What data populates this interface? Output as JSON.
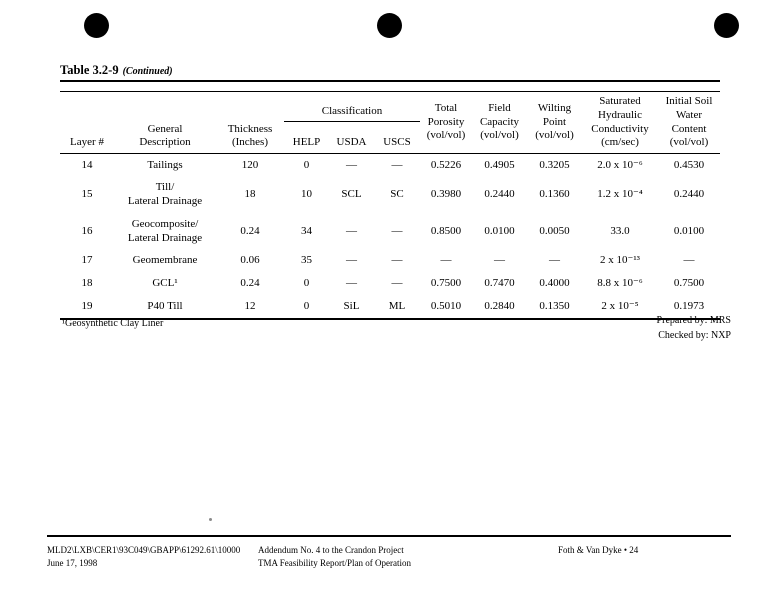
{
  "page": {
    "title_main": "Table 3.2-9",
    "title_suffix": "(Continued)"
  },
  "table": {
    "headers": {
      "layer": "Layer #",
      "description": "General\nDescription",
      "thickness": "Thickness\n(Inches)",
      "classification": "Classification",
      "help": "HELP",
      "usda": "USDA",
      "uscs": "USCS",
      "total_porosity": "Total\nPorosity\n(vol/vol)",
      "field_capacity": "Field\nCapacity\n(vol/vol)",
      "wilting_point": "Wilting\nPoint\n(vol/vol)",
      "saturated_hydraulic_conductivity": "Saturated\nHydraulic\nConductivity\n(cm/sec)",
      "initial_soil_water_content": "Initial Soil\nWater\nContent\n(vol/vol)"
    },
    "rows": [
      [
        "14",
        "Tailings",
        "120",
        "0",
        "—",
        "—",
        "0.5226",
        "0.4905",
        "0.3205",
        "2.0 x 10⁻⁶",
        "0.4530"
      ],
      [
        "15",
        "Till/\nLateral Drainage",
        "18",
        "10",
        "SCL",
        "SC",
        "0.3980",
        "0.2440",
        "0.1360",
        "1.2 x 10⁻⁴",
        "0.2440"
      ],
      [
        "16",
        "Geocomposite/\nLateral Drainage",
        "0.24",
        "34",
        "—",
        "—",
        "0.8500",
        "0.0100",
        "0.0050",
        "33.0",
        "0.0100"
      ],
      [
        "17",
        "Geomembrane",
        "0.06",
        "35",
        "—",
        "—",
        "—",
        "—",
        "—",
        "2 x 10⁻¹³",
        "—"
      ],
      [
        "18",
        "GCL¹",
        "0.24",
        "0",
        "—",
        "—",
        "0.7500",
        "0.7470",
        "0.4000",
        "8.8 x 10⁻⁶",
        "0.7500"
      ],
      [
        "19",
        "P40 Till",
        "12",
        "0",
        "SiL",
        "ML",
        "0.5010",
        "0.2840",
        "0.1350",
        "2 x 10⁻⁵",
        "0.1973"
      ]
    ]
  },
  "footnote": "¹Geosynthetic Clay Liner",
  "signoff": {
    "prepared": "Prepared by: MRS",
    "checked": "Checked by: NXP"
  },
  "footer": {
    "doc_code": "MLD2\\LXB\\CER1\\93C049\\GBAPP\\61292.61\\10000",
    "date": "June 17, 1998",
    "project_line1": "Addendum No. 4 to the Crandon Project",
    "project_line2": "TMA Feasibility Report/Plan of Operation",
    "page_ref": "Foth & Van Dyke • 24"
  }
}
